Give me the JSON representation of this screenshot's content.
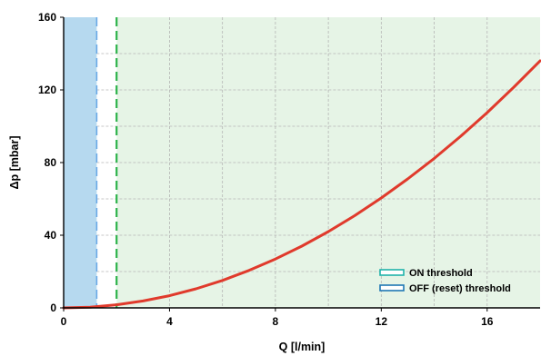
{
  "chart_data": {
    "type": "line",
    "xlabel": "Q [l/min]",
    "ylabel": "Δp [mbar]",
    "xlim": [
      0,
      18
    ],
    "ylim": [
      0,
      160
    ],
    "x_ticks": [
      0,
      4,
      8,
      12,
      16
    ],
    "y_ticks": [
      0,
      40,
      80,
      120,
      160
    ],
    "grid": true,
    "legend_position": "bottom-right",
    "series": [
      {
        "color": "#e03a2c",
        "x": [
          0,
          1,
          2,
          3,
          4,
          5,
          6,
          7,
          8,
          9,
          10,
          11,
          12,
          13,
          14,
          15,
          16,
          17,
          18
        ],
        "values": [
          0,
          0.4,
          1.7,
          3.8,
          6.7,
          10.5,
          15.1,
          20.6,
          26.9,
          34.0,
          42.0,
          50.8,
          60.5,
          71.0,
          82.3,
          94.5,
          107.5,
          121.4,
          136.0
        ]
      }
    ],
    "thresholds": [
      {
        "name": "ON threshold",
        "x": 2.0,
        "line_color": "#2db34a",
        "fill_color": "#e6f4e6",
        "legend_color": "#20b2aa"
      },
      {
        "name": "OFF (reset) threshold",
        "x": 1.25,
        "line_color": "#6aa9e6",
        "fill_color": "#b6d9ef",
        "legend_color": "#1f77b4"
      }
    ]
  }
}
